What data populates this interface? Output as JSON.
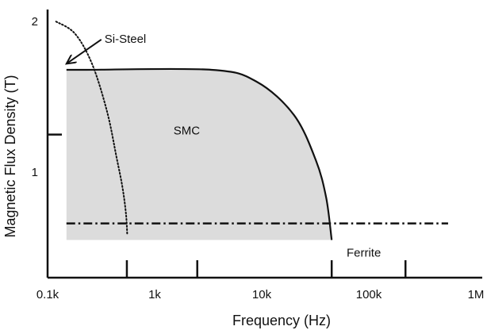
{
  "chart_data": {
    "type": "area",
    "title": "",
    "xlabel": "Frequency (Hz)",
    "ylabel": "Magnetic Flux Density (T)",
    "x_scale": "log",
    "xlim": [
      100,
      1000000
    ],
    "ylim": [
      0.3,
      2.08
    ],
    "x_ticks": [
      {
        "value": 100,
        "label": "0.1k"
      },
      {
        "value": 1000,
        "label": "1k"
      },
      {
        "value": 10000,
        "label": "10k"
      },
      {
        "value": 100000,
        "label": "100k"
      },
      {
        "value": 1000000,
        "label": "1M"
      }
    ],
    "x_minor_ticks": [
      550,
      2500,
      45000,
      220000
    ],
    "y_ticks": [
      {
        "value": 1,
        "label": "1"
      },
      {
        "value": 2,
        "label": "2"
      }
    ],
    "y_minor_ticks": [
      1.25
    ],
    "grid": false,
    "legend": "none",
    "series": [
      {
        "name": "SMC",
        "style": "solid",
        "fill": "#dcdcdc",
        "fill_floor": 0.55,
        "x": [
          150,
          225,
          3400,
          9000,
          20000,
          32000,
          40000,
          45000
        ],
        "y": [
          1.68,
          1.68,
          1.68,
          1.6,
          1.38,
          1.08,
          0.83,
          0.55
        ]
      },
      {
        "name": "Si-Steel",
        "style": "dotted",
        "x": [
          120,
          180,
          260,
          360,
          440,
          500,
          540,
          555
        ],
        "y": [
          2.0,
          1.92,
          1.72,
          1.4,
          1.1,
          0.9,
          0.72,
          0.58
        ]
      },
      {
        "name": "Ferrite",
        "style": "dashdot",
        "x": [
          150,
          550000
        ],
        "y": [
          0.66,
          0.66
        ]
      }
    ],
    "annotations": [
      {
        "text": "SMC",
        "x": 1500,
        "y": 1.25
      },
      {
        "text": "Si-Steel",
        "x": 340,
        "y": 1.86,
        "arrow_to": {
          "x": 150,
          "y": 1.72
        }
      },
      {
        "text": "Ferrite",
        "x": 62000,
        "y": 0.44
      }
    ]
  }
}
